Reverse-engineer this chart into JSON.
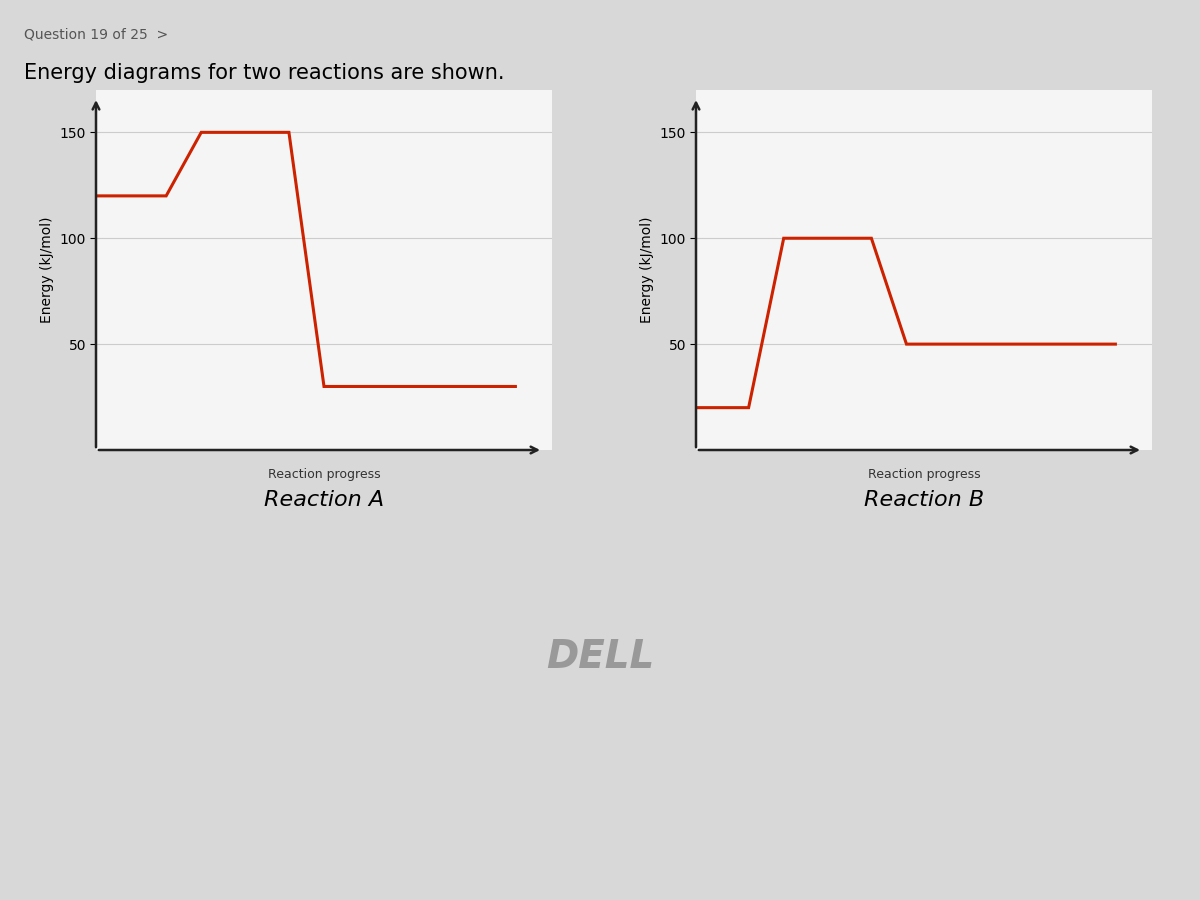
{
  "title": "Energy diagrams for two reactions are shown.",
  "question_header": "Question 19 of 25  >",
  "reaction_A": {
    "x": [
      0,
      2.0,
      3.0,
      5.5,
      6.5,
      8.5,
      9.0,
      12.0
    ],
    "y": [
      120,
      120,
      150,
      150,
      30,
      30,
      30,
      30
    ],
    "label": "Reaction A",
    "xlabel": "Reaction progress",
    "ylabel": "Energy (kJ/mol)"
  },
  "reaction_B": {
    "x": [
      0,
      1.5,
      2.5,
      5.0,
      6.0,
      7.5,
      8.0,
      12.0
    ],
    "y": [
      20,
      20,
      100,
      100,
      50,
      50,
      50,
      50
    ],
    "label": "Reaction B",
    "xlabel": "Reaction progress",
    "ylabel": "Energy (kJ/mol)"
  },
  "line_color": "#cc2200",
  "line_width": 2.2,
  "yticks": [
    50,
    100,
    150
  ],
  "ylim": [
    0,
    170
  ],
  "xlim": [
    0,
    13
  ],
  "plot_bg_color": "#f5f5f5",
  "fig_bg_color": "#d8d8d8",
  "content_bg_color": "#e8e8e8",
  "title_fontsize": 15,
  "label_fontsize": 10,
  "tick_fontsize": 10,
  "reaction_label_fontsize": 16,
  "xlabel_fontsize": 9
}
